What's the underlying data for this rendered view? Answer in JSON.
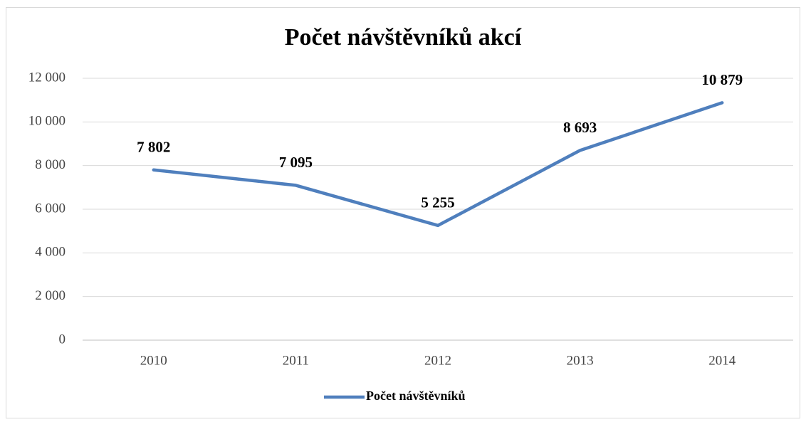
{
  "chart_data": {
    "type": "line",
    "title": "Počet návštěvníků akcí",
    "categories": [
      "2010",
      "2011",
      "2012",
      "2013",
      "2014"
    ],
    "series": [
      {
        "name": "Počet návštěvníků",
        "color": "#4f7fbd",
        "values": [
          7802,
          7095,
          5255,
          8693,
          10879
        ],
        "value_labels": [
          "7 802",
          "7 095",
          "5 255",
          "8 693",
          "10 879"
        ]
      }
    ],
    "ylim": [
      0,
      12000
    ],
    "yticks": [
      0,
      {
        "value": 2000,
        "label": "2 000"
      },
      {
        "value": 4000,
        "label": "4 000"
      },
      {
        "value": 6000,
        "label": "6 000"
      },
      {
        "value": 8000,
        "label": "8 000"
      },
      {
        "value": 10000,
        "label": "10 000"
      },
      {
        "value": 12000,
        "label": "12 000"
      }
    ],
    "grid": true,
    "legend": "bottom"
  }
}
